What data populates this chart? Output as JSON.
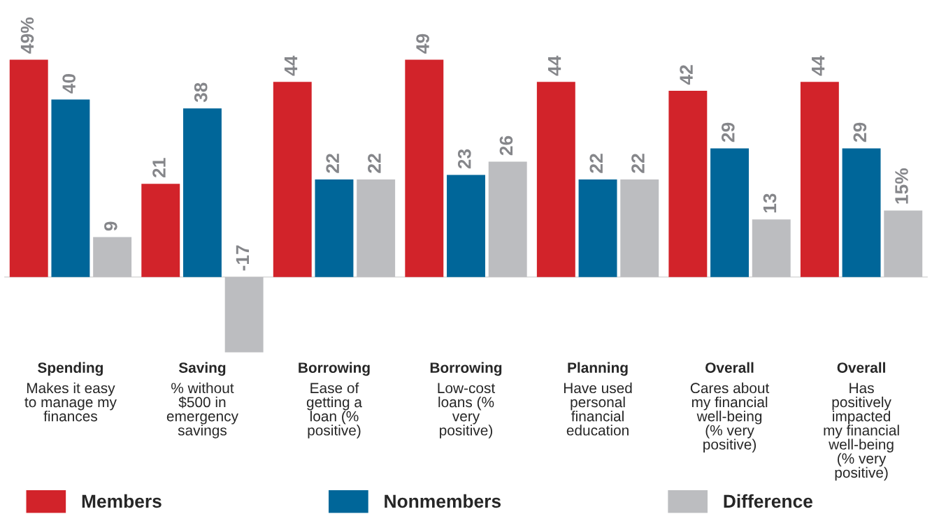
{
  "chart_data": {
    "type": "bar",
    "categories": [
      "Spending\nMakes it easy\nto manage my\nfinances",
      "Saving\n% without\n$500 in\nemergency\nsavings",
      "Borrowing\nEase of\ngetting a\nloan (%\npositive)",
      "Borrowing\nLow-cost\nloans (%\nvery\npositive)",
      "Planning\nHave used\npersonal\nfinancial\neducation",
      "Overall\nCares about\nmy financial\nwell-being\n(% very\npositive)",
      "Overall\nHas\npositively\nimpacted\nmy financial\nwell-being\n(% very\npositive)"
    ],
    "series": [
      {
        "name": "Members",
        "color": "#d2232a",
        "values": [
          49,
          21,
          44,
          49,
          44,
          42,
          44
        ],
        "value_labels": [
          "49%",
          "21",
          "44",
          "49",
          "44",
          "42",
          "44"
        ]
      },
      {
        "name": "Nonmembers",
        "color": "#006699",
        "values": [
          40,
          38,
          22,
          23,
          22,
          29,
          29
        ],
        "value_labels": [
          "40",
          "38",
          "22",
          "23",
          "22",
          "29",
          "29"
        ]
      },
      {
        "name": "Difference",
        "color": "#bcbdc0",
        "values": [
          9,
          -17,
          22,
          26,
          22,
          13,
          15
        ],
        "value_labels": [
          "9",
          "-17",
          "22",
          "26",
          "22",
          "13",
          "15%"
        ]
      }
    ],
    "legend": "bottom"
  }
}
